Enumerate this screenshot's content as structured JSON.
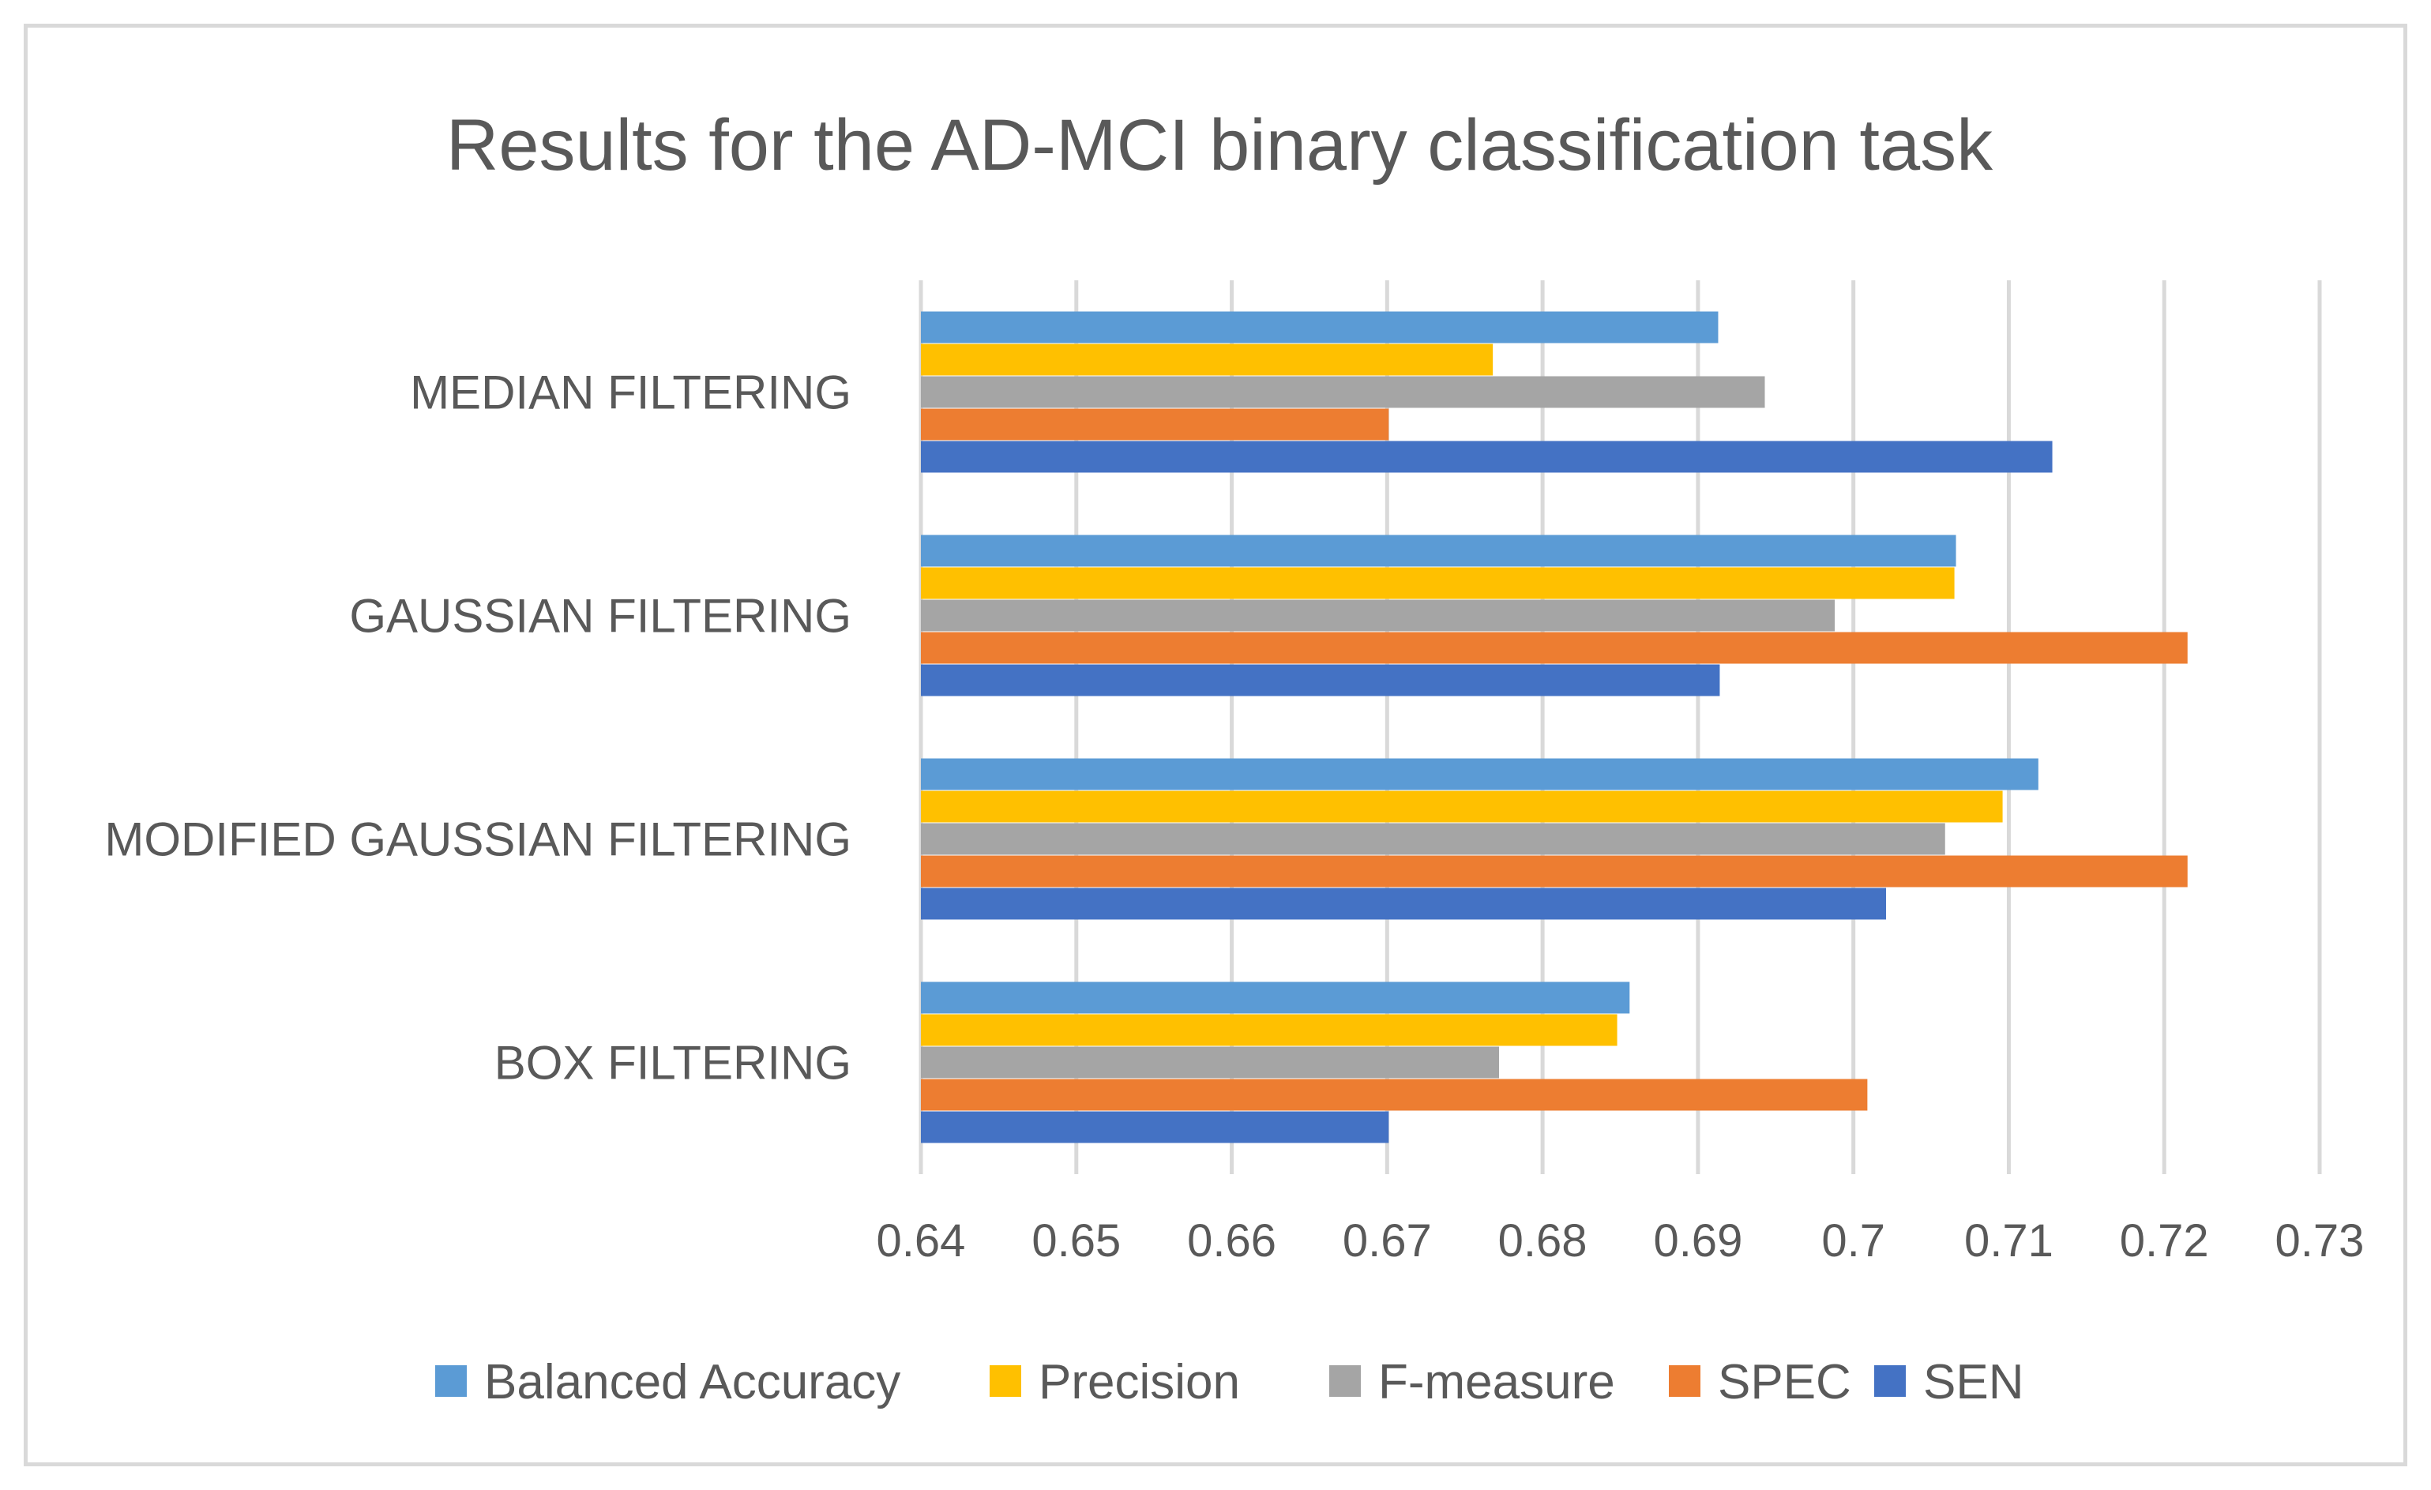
{
  "chart_data": {
    "type": "bar",
    "orientation": "horizontal",
    "title": "Results for the AD-MCI binary classification task",
    "xlabel": "",
    "ylabel": "",
    "xlim": [
      0.64,
      0.73
    ],
    "ticks": [
      "0.64",
      "0.65",
      "0.66",
      "0.67",
      "0.68",
      "0.69",
      "0.7",
      "0.71",
      "0.72",
      "0.73"
    ],
    "grid": true,
    "legend_position": "bottom",
    "categories": [
      "MEDIAN FILTERING",
      "GAUSSIAN FILTERING",
      "MODIFIED GAUSSIAN FILTERING",
      "BOX FILTERING"
    ],
    "series": [
      {
        "name": "Balanced Accuracy",
        "color": "#5b9bd5",
        "values": [
          0.6913,
          0.7066,
          0.7119,
          0.6856
        ]
      },
      {
        "name": "Precision",
        "color": "#ffc000",
        "values": [
          0.6768,
          0.7065,
          0.7096,
          0.6848
        ]
      },
      {
        "name": "F-measure",
        "color": "#a5a5a5",
        "values": [
          0.6943,
          0.6988,
          0.7059,
          0.6772
        ]
      },
      {
        "name": "SPEC",
        "color": "#ed7d31",
        "values": [
          0.6701,
          0.7215,
          0.7215,
          0.7009
        ]
      },
      {
        "name": "SEN",
        "color": "#4472c4",
        "values": [
          0.7128,
          0.6914,
          0.7021,
          0.6701
        ]
      }
    ]
  }
}
